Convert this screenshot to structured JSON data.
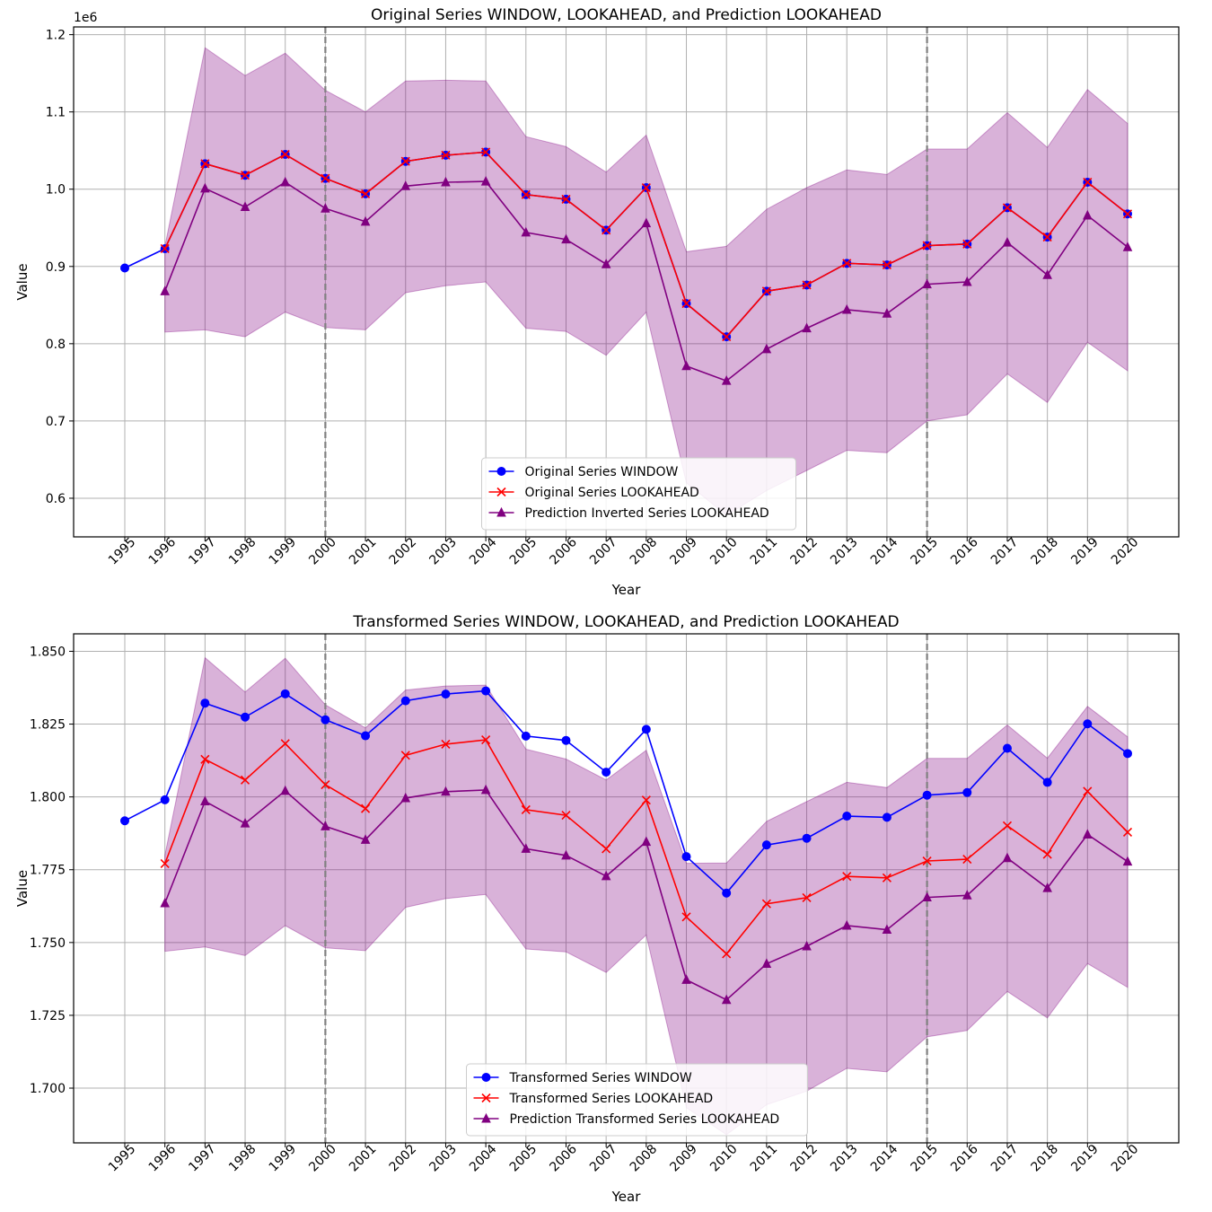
{
  "chart_data": [
    {
      "type": "line",
      "title": "Original Series WINDOW, LOOKAHEAD, and Prediction LOOKAHEAD",
      "xlabel": "Year",
      "ylabel": "Value",
      "offset_label": "1e6",
      "categories": [
        "1995",
        "1996",
        "1997",
        "1998",
        "1999",
        "2000",
        "2001",
        "2002",
        "2003",
        "2004",
        "2005",
        "2006",
        "2007",
        "2008",
        "2009",
        "2010",
        "2011",
        "2012",
        "2013",
        "2014",
        "2015",
        "2016",
        "2017",
        "2018",
        "2019",
        "2020"
      ],
      "ylim": [
        0.55,
        1.21
      ],
      "yticks": [
        0.6,
        0.7,
        0.8,
        0.9,
        1.0,
        1.1,
        1.2
      ],
      "ytick_labels": [
        "0.6",
        "0.7",
        "0.8",
        "0.9",
        "1.0",
        "1.1",
        "1.2"
      ],
      "grid": true,
      "vlines": [
        2000,
        2015
      ],
      "legend_position": "bottom-center",
      "band": {
        "x": [
          1996,
          1997,
          1998,
          1999,
          2000,
          2001,
          2002,
          2003,
          2004,
          2005,
          2006,
          2007,
          2008,
          2009,
          2010,
          2011,
          2012,
          2013,
          2014,
          2015,
          2016,
          2017,
          2018,
          2019,
          2020
        ],
        "lower": [
          0.815,
          0.818,
          0.809,
          0.841,
          0.821,
          0.818,
          0.866,
          0.875,
          0.88,
          0.82,
          0.816,
          0.785,
          0.841,
          0.62,
          0.578,
          0.61,
          0.636,
          0.662,
          0.659,
          0.7,
          0.708,
          0.761,
          0.724,
          0.802,
          0.765
        ],
        "upper": [
          0.926,
          1.183,
          1.147,
          1.176,
          1.128,
          1.1,
          1.14,
          1.141,
          1.14,
          1.068,
          1.055,
          1.022,
          1.07,
          0.919,
          0.926,
          0.974,
          1.002,
          1.025,
          1.019,
          1.052,
          1.052,
          1.099,
          1.054,
          1.129,
          1.085
        ]
      },
      "series": [
        {
          "name": "Original Series WINDOW",
          "color": "#0000ff",
          "marker": "circle",
          "x": [
            1995,
            1996,
            1997,
            1998,
            1999,
            2000,
            2001,
            2002,
            2003,
            2004,
            2005,
            2006,
            2007,
            2008,
            2009,
            2010,
            2011,
            2012,
            2013,
            2014,
            2015,
            2016,
            2017,
            2018,
            2019,
            2020
          ],
          "values": [
            0.898,
            0.923,
            1.033,
            1.018,
            1.045,
            1.014,
            0.994,
            1.036,
            1.044,
            1.048,
            0.993,
            0.987,
            0.947,
            1.002,
            0.852,
            0.809,
            0.868,
            0.876,
            0.904,
            0.902,
            0.927,
            0.929,
            0.976,
            0.938,
            1.009,
            0.968
          ]
        },
        {
          "name": "Original Series LOOKAHEAD",
          "color": "#ff0000",
          "marker": "x",
          "x": [
            1996,
            1997,
            1998,
            1999,
            2000,
            2001,
            2002,
            2003,
            2004,
            2005,
            2006,
            2007,
            2008,
            2009,
            2010,
            2011,
            2012,
            2013,
            2014,
            2015,
            2016,
            2017,
            2018,
            2019,
            2020
          ],
          "values": [
            0.923,
            1.033,
            1.018,
            1.045,
            1.014,
            0.994,
            1.036,
            1.044,
            1.048,
            0.993,
            0.987,
            0.947,
            1.002,
            0.852,
            0.809,
            0.868,
            0.876,
            0.904,
            0.902,
            0.927,
            0.929,
            0.976,
            0.938,
            1.009,
            0.968
          ]
        },
        {
          "name": "Prediction Inverted Series LOOKAHEAD",
          "color": "#800080",
          "marker": "triangle",
          "x": [
            1996,
            1997,
            1998,
            1999,
            2000,
            2001,
            2002,
            2003,
            2004,
            2005,
            2006,
            2007,
            2008,
            2009,
            2010,
            2011,
            2012,
            2013,
            2014,
            2015,
            2016,
            2017,
            2018,
            2019,
            2020
          ],
          "values": [
            0.868,
            1.001,
            0.977,
            1.009,
            0.975,
            0.958,
            1.004,
            1.009,
            1.01,
            0.944,
            0.935,
            0.903,
            0.956,
            0.771,
            0.752,
            0.793,
            0.82,
            0.844,
            0.839,
            0.877,
            0.88,
            0.931,
            0.889,
            0.966,
            0.925
          ]
        }
      ]
    },
    {
      "type": "line",
      "title": "Transformed Series WINDOW, LOOKAHEAD, and Prediction LOOKAHEAD",
      "xlabel": "Year",
      "ylabel": "Value",
      "offset_label": "",
      "categories": [
        "1995",
        "1996",
        "1997",
        "1998",
        "1999",
        "2000",
        "2001",
        "2002",
        "2003",
        "2004",
        "2005",
        "2006",
        "2007",
        "2008",
        "2009",
        "2010",
        "2011",
        "2012",
        "2013",
        "2014",
        "2015",
        "2016",
        "2017",
        "2018",
        "2019",
        "2020"
      ],
      "ylim": [
        1.6812,
        1.856
      ],
      "yticks": [
        1.7,
        1.725,
        1.75,
        1.775,
        1.8,
        1.825,
        1.85
      ],
      "ytick_labels": [
        "1.700",
        "1.725",
        "1.750",
        "1.775",
        "1.800",
        "1.825",
        "1.850"
      ],
      "grid": true,
      "vlines": [
        2000,
        2015
      ],
      "legend_position": "bottom-center",
      "band": {
        "x": [
          1996,
          1997,
          1998,
          1999,
          2000,
          2001,
          2002,
          2003,
          2004,
          2005,
          2006,
          2007,
          2008,
          2009,
          2010,
          2011,
          2012,
          2013,
          2014,
          2015,
          2016,
          2017,
          2018,
          2019,
          2020
        ],
        "lower": [
          1.747,
          1.7485,
          1.7455,
          1.7558,
          1.7482,
          1.7472,
          1.7621,
          1.7651,
          1.7665,
          1.7478,
          1.7468,
          1.7397,
          1.7526,
          1.6933,
          1.684,
          1.6943,
          1.699,
          1.7068,
          1.7056,
          1.7176,
          1.7198,
          1.7332,
          1.7241,
          1.7428,
          1.7346
        ],
        "upper": [
          1.78,
          1.8478,
          1.836,
          1.8476,
          1.8316,
          1.8237,
          1.8367,
          1.8381,
          1.8384,
          1.8164,
          1.813,
          1.8058,
          1.816,
          1.7772,
          1.7773,
          1.7916,
          1.7984,
          1.805,
          1.8032,
          1.8132,
          1.8132,
          1.8247,
          1.8133,
          1.8311,
          1.8206
        ]
      },
      "series": [
        {
          "name": "Transformed Series WINDOW",
          "color": "#0000ff",
          "marker": "circle",
          "x": [
            1995,
            1996,
            1997,
            1998,
            1999,
            2000,
            2001,
            2002,
            2003,
            2004,
            2005,
            2006,
            2007,
            2008,
            2009,
            2010,
            2011,
            2012,
            2013,
            2014,
            2015,
            2016,
            2017,
            2018,
            2019,
            2020
          ],
          "values": [
            1.7918,
            1.799,
            1.8322,
            1.8274,
            1.8354,
            1.8265,
            1.821,
            1.833,
            1.8353,
            1.8364,
            1.8209,
            1.8194,
            1.8085,
            1.8232,
            1.7795,
            1.767,
            1.7835,
            1.7858,
            1.7934,
            1.793,
            1.8006,
            1.8015,
            1.8167,
            1.805,
            1.8251,
            1.8149
          ]
        },
        {
          "name": "Transformed Series LOOKAHEAD",
          "color": "#ff0000",
          "marker": "x",
          "x": [
            1996,
            1997,
            1998,
            1999,
            2000,
            2001,
            2002,
            2003,
            2004,
            2005,
            2006,
            2007,
            2008,
            2009,
            2010,
            2011,
            2012,
            2013,
            2014,
            2015,
            2016,
            2017,
            2018,
            2019,
            2020
          ],
          "values": [
            1.7771,
            1.8129,
            1.8058,
            1.8183,
            1.8042,
            1.796,
            1.8143,
            1.8181,
            1.8196,
            1.7956,
            1.7937,
            1.7822,
            1.7989,
            1.7588,
            1.7461,
            1.7633,
            1.7654,
            1.7727,
            1.7722,
            1.778,
            1.7786,
            1.7901,
            1.7803,
            1.8019,
            1.7879
          ]
        },
        {
          "name": "Prediction Transformed Series LOOKAHEAD",
          "color": "#800080",
          "marker": "triangle",
          "x": [
            1996,
            1997,
            1998,
            1999,
            2000,
            2001,
            2002,
            2003,
            2004,
            2005,
            2006,
            2007,
            2008,
            2009,
            2010,
            2011,
            2012,
            2013,
            2014,
            2015,
            2016,
            2017,
            2018,
            2019,
            2020
          ],
          "values": [
            1.7635,
            1.7985,
            1.7909,
            1.8021,
            1.7899,
            1.7853,
            1.7996,
            1.8018,
            1.8024,
            1.7822,
            1.7799,
            1.7728,
            1.7846,
            1.7372,
            1.7303,
            1.7427,
            1.7487,
            1.7558,
            1.7544,
            1.7655,
            1.7662,
            1.779,
            1.7687,
            1.7871,
            1.7778
          ]
        }
      ]
    }
  ]
}
